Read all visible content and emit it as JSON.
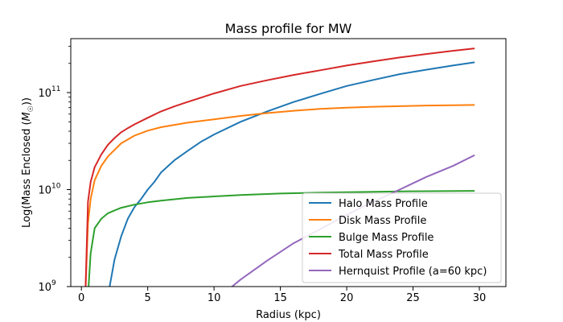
{
  "chart_data": {
    "type": "line",
    "title": "Mass profile for MW",
    "xlabel": "Radius (kpc)",
    "ylabel": "Log(Mass Enclosed (M☉))",
    "xlim": [
      -0.8,
      32
    ],
    "ylim": [
      1000000000.0,
      360000000000.0
    ],
    "yscale": "log",
    "xticks": [
      0,
      5,
      10,
      15,
      20,
      25,
      30
    ],
    "yticks": [
      {
        "value": 1000000000.0,
        "mantissa": "10",
        "exp": "9"
      },
      {
        "value": 10000000000.0,
        "mantissa": "10",
        "exp": "10"
      },
      {
        "value": 100000000000.0,
        "mantissa": "10",
        "exp": "11"
      }
    ],
    "grid": false,
    "legend_position": "lower right",
    "series": [
      {
        "name": "Halo Mass Profile",
        "color": "#1f77b4",
        "x": [
          2.0,
          2.5,
          3.0,
          3.5,
          4.0,
          4.5,
          5.0,
          5.5,
          6.0,
          7.0,
          8.0,
          9.0,
          10.0,
          12.0,
          14.0,
          16.0,
          18.0,
          20.0,
          22.0,
          24.0,
          26.0,
          28.0,
          29.6
        ],
        "y": [
          800000000.0,
          1900000000.0,
          3300000000.0,
          5000000000.0,
          6600000000.0,
          8000000000.0,
          10000000000.0,
          12000000000.0,
          15000000000.0,
          20000000000.0,
          25000000000.0,
          31000000000.0,
          37000000000.0,
          50000000000.0,
          64000000000.0,
          80000000000.0,
          97000000000.0,
          117000000000.0,
          135000000000.0,
          155000000000.0,
          172000000000.0,
          190000000000.0,
          205000000000.0
        ]
      },
      {
        "name": "Disk Mass Profile",
        "color": "#ff7f0e",
        "x": [
          0.3,
          0.5,
          0.7,
          1.0,
          1.5,
          2.0,
          3.0,
          4.0,
          5.0,
          6.0,
          8.0,
          10.0,
          12.0,
          14.0,
          16.0,
          18.0,
          20.0,
          22.0,
          24.0,
          26.0,
          28.0,
          29.6
        ],
        "y": [
          800000000.0,
          4500000000.0,
          8000000000.0,
          12500000000.0,
          17500000000.0,
          22000000000.0,
          30000000000.0,
          36000000000.0,
          40500000000.0,
          44000000000.0,
          49000000000.0,
          53000000000.0,
          57500000000.0,
          61500000000.0,
          65000000000.0,
          68000000000.0,
          70000000000.0,
          71500000000.0,
          72500000000.0,
          73500000000.0,
          74000000000.0,
          74500000000.0
        ]
      },
      {
        "name": "Bulge Mass Profile",
        "color": "#2ca02c",
        "x": [
          0.5,
          0.7,
          1.0,
          1.5,
          2.0,
          2.5,
          3.0,
          4.0,
          5.0,
          6.0,
          8.0,
          10.0,
          12.0,
          15.0,
          18.0,
          20.0,
          25.0,
          29.6
        ],
        "y": [
          800000000.0,
          2200000000.0,
          4000000000.0,
          5000000000.0,
          5700000000.0,
          6100000000.0,
          6500000000.0,
          7000000000.0,
          7400000000.0,
          7700000000.0,
          8200000000.0,
          8500000000.0,
          8800000000.0,
          9100000000.0,
          9300000000.0,
          9400000000.0,
          9600000000.0,
          9700000000.0
        ]
      },
      {
        "name": "Total Mass Profile",
        "color": "#d62728",
        "x": [
          0.3,
          0.5,
          0.7,
          1.0,
          1.5,
          2.0,
          2.5,
          3.0,
          3.5,
          4.0,
          5.0,
          6.0,
          7.0,
          8.0,
          10.0,
          12.0,
          14.0,
          16.0,
          18.0,
          20.0,
          22.0,
          24.0,
          26.0,
          28.0,
          29.6
        ],
        "y": [
          800000000.0,
          7500000000.0,
          12000000000.0,
          17000000000.0,
          23000000000.0,
          29000000000.0,
          34000000000.0,
          39000000000.0,
          43000000000.0,
          47000000000.0,
          55000000000.0,
          64000000000.0,
          72000000000.0,
          80000000000.0,
          98000000000.0,
          117000000000.0,
          134000000000.0,
          152000000000.0,
          170000000000.0,
          190000000000.0,
          210000000000.0,
          230000000000.0,
          250000000000.0,
          270000000000.0,
          285000000000.0
        ]
      },
      {
        "name": "Hernquist Profile (a=60 kpc)",
        "color": "#9467bd",
        "x": [
          10.5,
          12.0,
          14.0,
          16.0,
          18.0,
          20.0,
          22.0,
          24.0,
          26.0,
          28.0,
          29.6
        ],
        "y": [
          800000000.0,
          1180000000.0,
          1850000000.0,
          2800000000.0,
          3900000000.0,
          5500000000.0,
          7500000000.0,
          10000000000.0,
          13500000000.0,
          17500000000.0,
          22500000000.0
        ]
      }
    ]
  }
}
